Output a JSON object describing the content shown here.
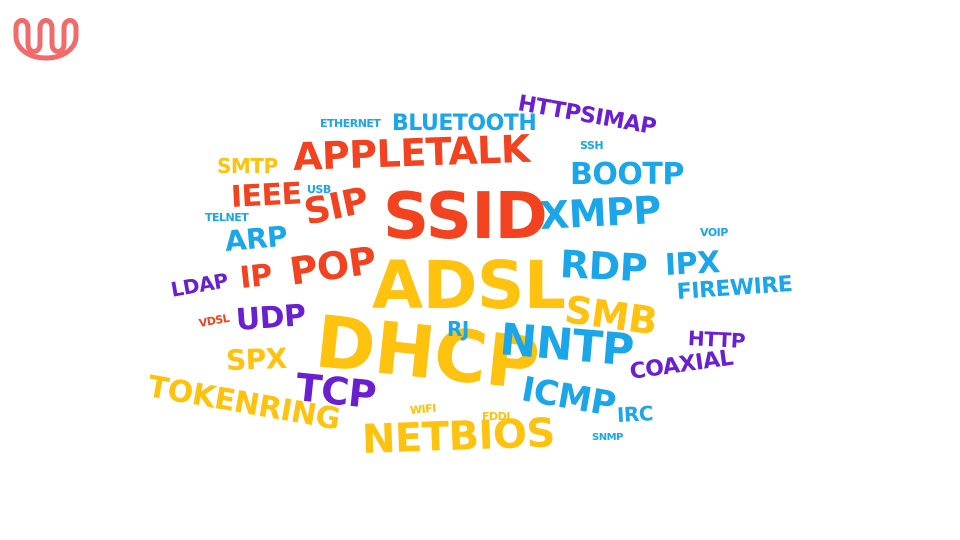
{
  "logo": {
    "icon": "wave-logo-icon",
    "color": "#f26b6b"
  },
  "colors": {
    "orange": "#f2421f",
    "yellow": "#ffc20e",
    "blue": "#1aa6e8",
    "purple": "#6a1fd1"
  },
  "words": [
    {
      "text": "SSID",
      "color": "#f2421f"
    },
    {
      "text": "ADSL",
      "color": "#ffc20e"
    },
    {
      "text": "DHCP",
      "color": "#ffc20e"
    },
    {
      "text": "APPLETALK",
      "color": "#f2421f"
    },
    {
      "text": "NETBIOS",
      "color": "#ffc20e"
    },
    {
      "text": "NNTP",
      "color": "#1aa6e8"
    },
    {
      "text": "XMPP",
      "color": "#1aa6e8"
    },
    {
      "text": "POP",
      "color": "#f2421f"
    },
    {
      "text": "SIP",
      "color": "#f2421f"
    },
    {
      "text": "TCP",
      "color": "#6a1fd1"
    },
    {
      "text": "TOKENRING",
      "color": "#ffc20e"
    },
    {
      "text": "SMB",
      "color": "#ffc20e"
    },
    {
      "text": "RDP",
      "color": "#1aa6e8"
    },
    {
      "text": "ICMP",
      "color": "#1aa6e8"
    },
    {
      "text": "BOOTP",
      "color": "#1aa6e8"
    },
    {
      "text": "HTTPSIMAP",
      "color": "#6a1fd1"
    },
    {
      "text": "BLUETOOTH",
      "color": "#1aa6e8"
    },
    {
      "text": "IPX",
      "color": "#1aa6e8"
    },
    {
      "text": "FIREWIRE",
      "color": "#1aa6e8"
    },
    {
      "text": "COAXIAL",
      "color": "#6a1fd1"
    },
    {
      "text": "IEEE",
      "color": "#f2421f"
    },
    {
      "text": "ARP",
      "color": "#1aa6e8"
    },
    {
      "text": "SMTP",
      "color": "#ffc20e"
    },
    {
      "text": "IP",
      "color": "#f2421f"
    },
    {
      "text": "UDP",
      "color": "#6a1fd1"
    },
    {
      "text": "SPX",
      "color": "#ffc20e"
    },
    {
      "text": "LDAP",
      "color": "#6a1fd1"
    },
    {
      "text": "HTTP",
      "color": "#6a1fd1"
    },
    {
      "text": "IRC",
      "color": "#1aa6e8"
    },
    {
      "text": "RJ",
      "color": "#1aa6e8"
    },
    {
      "text": "ETHERNET",
      "color": "#1aa6e8"
    },
    {
      "text": "SSH",
      "color": "#1aa6e8"
    },
    {
      "text": "USB",
      "color": "#1aa6e8"
    },
    {
      "text": "TELNET",
      "color": "#1aa6e8"
    },
    {
      "text": "VOIP",
      "color": "#1aa6e8"
    },
    {
      "text": "VDSL",
      "color": "#f2421f"
    },
    {
      "text": "WIFI",
      "color": "#ffc20e"
    },
    {
      "text": "FDDI",
      "color": "#ffc20e"
    },
    {
      "text": "SNMP",
      "color": "#1aa6e8"
    }
  ]
}
